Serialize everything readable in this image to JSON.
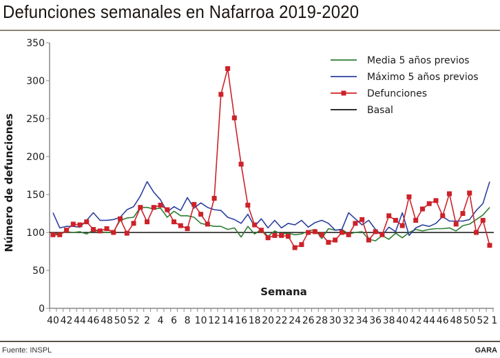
{
  "header": {
    "title": "Defunciones semanales en Nafarroa 2019-2020"
  },
  "footer": {
    "source": "Fuente: INSPL",
    "brand": "GARA"
  },
  "colors": {
    "media": "#2e7d32",
    "maximo": "#2b3f9e",
    "defunciones": "#cc2229",
    "basal": "#111111",
    "axis": "#888888"
  },
  "chart_data": {
    "type": "line",
    "title": "Defunciones semanales en Nafarroa 2019-2020",
    "xlabel": "Semana",
    "ylabel": "Número de defunciones",
    "ylim": [
      0,
      350
    ],
    "yticks": [
      0,
      50,
      100,
      150,
      200,
      250,
      300,
      350
    ],
    "grid": false,
    "legend_position": "top-right",
    "x": [
      "40",
      "41",
      "42",
      "43",
      "44",
      "45",
      "46",
      "47",
      "48",
      "49",
      "50",
      "51",
      "52",
      "1",
      "2",
      "3",
      "4",
      "5",
      "6",
      "7",
      "8",
      "9",
      "10",
      "11",
      "12",
      "13",
      "14",
      "15",
      "16",
      "17",
      "18",
      "19",
      "20",
      "21",
      "22",
      "23",
      "24",
      "25",
      "26",
      "27",
      "28",
      "29",
      "30",
      "31",
      "32",
      "33",
      "34",
      "35",
      "36",
      "37",
      "38",
      "39",
      "40",
      "41",
      "42",
      "43",
      "44",
      "45",
      "46",
      "47",
      "48",
      "49",
      "50",
      "51",
      "52",
      "53"
    ],
    "xtick_labels": [
      "40",
      "42",
      "44",
      "46",
      "48",
      "50",
      "52",
      "2",
      "4",
      "6",
      "8",
      "10",
      "12",
      "14",
      "16",
      "18",
      "20",
      "22",
      "24",
      "26",
      "28",
      "30",
      "32",
      "34",
      "36",
      "38",
      "40",
      "42",
      "44",
      "46",
      "48",
      "50",
      "52",
      "1"
    ],
    "series": [
      {
        "name": "Media 5 años previos",
        "key": "media",
        "marker": false,
        "values": [
          99,
          98,
          101,
          100,
          101,
          98,
          103,
          101,
          100,
          101,
          116,
          119,
          120,
          133,
          133,
          131,
          132,
          120,
          128,
          122,
          122,
          120,
          112,
          110,
          108,
          108,
          104,
          106,
          94,
          108,
          98,
          104,
          95,
          102,
          98,
          99,
          97,
          98,
          102,
          104,
          92,
          105,
          103,
          104,
          98,
          100,
          101,
          91,
          89,
          96,
          91,
          99,
          93,
          100,
          104,
          102,
          104,
          105,
          105,
          106,
          102,
          109,
          111,
          117,
          123,
          133
        ]
      },
      {
        "name": "Máximo 5 años previos",
        "key": "maximo",
        "marker": false,
        "values": [
          126,
          106,
          108,
          108,
          107,
          116,
          126,
          116,
          116,
          117,
          120,
          130,
          134,
          148,
          167,
          153,
          143,
          127,
          134,
          129,
          146,
          132,
          139,
          133,
          130,
          129,
          120,
          117,
          112,
          124,
          108,
          118,
          106,
          116,
          106,
          112,
          110,
          116,
          107,
          113,
          116,
          112,
          103,
          104,
          126,
          118,
          110,
          116,
          104,
          96,
          107,
          101,
          126,
          96,
          106,
          110,
          108,
          112,
          121,
          115,
          115,
          115,
          117,
          129,
          138,
          167
        ]
      },
      {
        "name": "Defunciones",
        "key": "defunciones",
        "marker": true,
        "values": [
          97,
          97,
          103,
          111,
          110,
          114,
          104,
          102,
          105,
          100,
          118,
          99,
          112,
          133,
          114,
          133,
          136,
          130,
          114,
          109,
          105,
          137,
          124,
          111,
          145,
          282,
          316,
          251,
          190,
          136,
          110,
          103,
          93,
          96,
          96,
          95,
          80,
          84,
          100,
          101,
          97,
          87,
          90,
          100,
          97,
          112,
          117,
          90,
          101,
          97,
          122,
          116,
          109,
          147,
          116,
          131,
          138,
          142,
          122,
          151,
          111,
          125,
          152,
          100,
          116,
          83
        ]
      },
      {
        "name": "Basal",
        "key": "basal",
        "marker": false,
        "values": [
          100,
          100,
          100,
          100,
          100,
          100,
          100,
          100,
          100,
          100,
          100,
          100,
          100,
          100,
          100,
          100,
          100,
          100,
          100,
          100,
          100,
          100,
          100,
          100,
          100,
          100,
          100,
          100,
          100,
          100,
          100,
          100,
          100,
          100,
          100,
          100,
          100,
          100,
          100,
          100,
          100,
          100,
          100,
          100,
          100,
          100,
          100,
          100,
          100,
          100,
          100,
          100,
          100,
          100,
          100,
          100,
          100,
          100,
          100,
          100,
          100,
          100,
          100,
          100,
          100,
          100
        ]
      }
    ],
    "legend": [
      "Media 5 años previos",
      "Máximo 5 años previos",
      "Defunciones",
      "Basal"
    ]
  }
}
